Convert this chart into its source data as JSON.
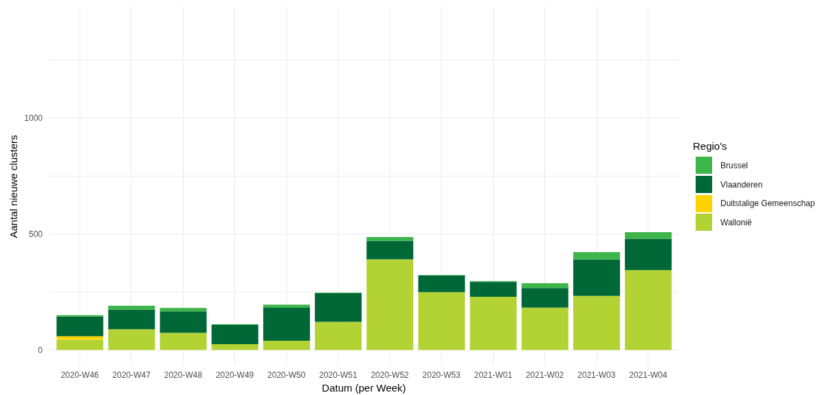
{
  "chart_data": {
    "type": "bar",
    "stacked": true,
    "xlabel": "Datum (per Week)",
    "ylabel": "Aantal nieuwe clusters",
    "legend_title": "Regio's",
    "categories": [
      "2020-W46",
      "2020-W47",
      "2020-W48",
      "2020-W49",
      "2020-W50",
      "2020-W51",
      "2020-W52",
      "2020-W53",
      "2021-W01",
      "2021-W02",
      "2021-W03",
      "2021-W04"
    ],
    "series": [
      {
        "name": "Wallonië",
        "color": "#b3d335",
        "values": [
          44,
          89,
          74,
          25,
          40,
          121,
          391,
          249,
          229,
          183,
          233,
          344
        ]
      },
      {
        "name": "Duitstalige Gemeenschap",
        "color": "#fed300",
        "values": [
          15,
          0,
          0,
          0,
          0,
          0,
          0,
          0,
          0,
          0,
          0,
          0
        ]
      },
      {
        "name": "Vlaanderen",
        "color": "#006837",
        "values": [
          85,
          85,
          92,
          83,
          142,
          123,
          80,
          72,
          65,
          84,
          157,
          136
        ]
      },
      {
        "name": "Brussel",
        "color": "#3db54a",
        "values": [
          6,
          17,
          15,
          3,
          13,
          3,
          16,
          2,
          3,
          21,
          32,
          28
        ]
      }
    ],
    "ylim": [
      -70,
      1480
    ],
    "yticks": [
      0,
      {
        "value": 250,
        "label": null
      },
      500,
      {
        "value": 750,
        "label": null
      },
      1000,
      {
        "value": 1250,
        "label": null
      }
    ],
    "grid": true,
    "legend": "right"
  }
}
